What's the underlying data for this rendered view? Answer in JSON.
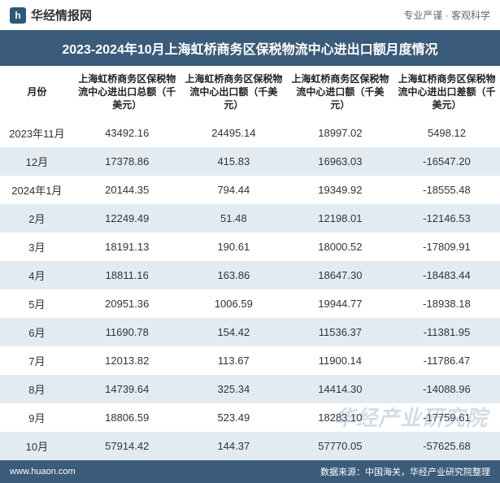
{
  "header": {
    "logo_text": "华经情报网",
    "tagline": "专业严谨 · 客观科学"
  },
  "title": "2023-2024年10月上海虹桥商务区保税物流中心进出口额月度情况",
  "table": {
    "columns": [
      "月份",
      "上海虹桥商务区保税物流中心进出口总额（千美元）",
      "上海虹桥商务区保税物流中心出口额（千美元）",
      "上海虹桥商务区保税物流中心进口额（千美元）",
      "上海虹桥商务区保税物流中心进出口差额（千美元）"
    ],
    "rows": [
      [
        "2023年11月",
        "43492.16",
        "24495.14",
        "18997.02",
        "5498.12"
      ],
      [
        "12月",
        "17378.86",
        "415.83",
        "16963.03",
        "-16547.20"
      ],
      [
        "2024年1月",
        "20144.35",
        "794.44",
        "19349.92",
        "-18555.48"
      ],
      [
        "2月",
        "12249.49",
        "51.48",
        "12198.01",
        "-12146.53"
      ],
      [
        "3月",
        "18191.13",
        "190.61",
        "18000.52",
        "-17809.91"
      ],
      [
        "4月",
        "18811.16",
        "163.86",
        "18647.30",
        "-18483.44"
      ],
      [
        "5月",
        "20951.36",
        "1006.59",
        "19944.77",
        "-18938.18"
      ],
      [
        "6月",
        "11690.78",
        "154.42",
        "11536.37",
        "-11381.95"
      ],
      [
        "7月",
        "12013.82",
        "113.67",
        "11900.14",
        "-11786.47"
      ],
      [
        "8月",
        "14739.64",
        "325.34",
        "14414.30",
        "-14088.96"
      ],
      [
        "9月",
        "18806.59",
        "523.49",
        "18283.10",
        "-17759.61"
      ],
      [
        "10月",
        "57914.42",
        "144.37",
        "57770.05",
        "-57625.68"
      ]
    ]
  },
  "watermark": "华经产业研究院",
  "footer": {
    "url": "www.huaon.com",
    "source": "数据来源：中国海关，华经产业研究院整理"
  },
  "styling": {
    "title_bg": "#3b5b7a",
    "title_color": "#ffffff",
    "row_even_bg": "#e3ebf2",
    "row_odd_bg": "#ffffff",
    "text_color": "#333333",
    "footer_bg": "#3b5b7a",
    "watermark_color": "rgba(90,130,170,0.28)"
  }
}
